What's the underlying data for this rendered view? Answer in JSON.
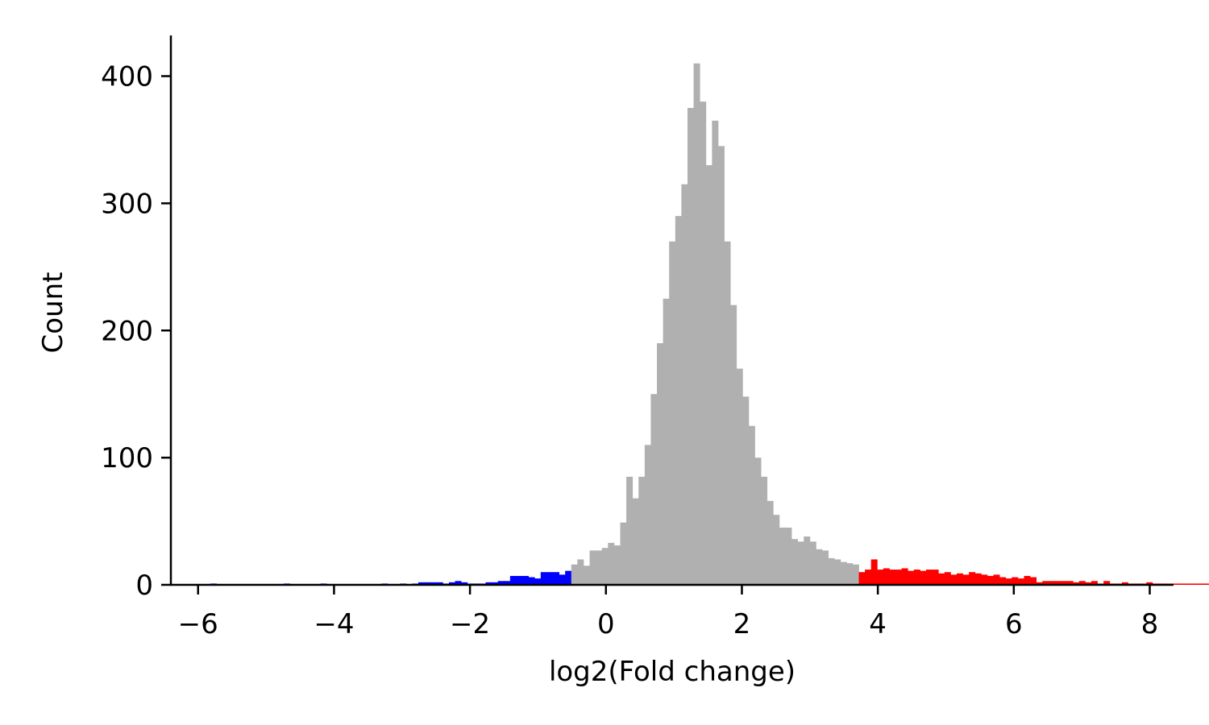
{
  "chart_data": {
    "type": "bar",
    "subtype": "histogram",
    "xlabel": "log2(Fold change)",
    "ylabel": "Count",
    "xlim": [
      -6.4,
      8.35
    ],
    "ylim": [
      0,
      432
    ],
    "xticks": [
      -6,
      -4,
      -2,
      0,
      2,
      4,
      6,
      8
    ],
    "xtick_labels": [
      "−6",
      "−4",
      "−2",
      "0",
      "2",
      "4",
      "6",
      "8"
    ],
    "yticks": [
      0,
      100,
      200,
      300,
      400
    ],
    "ytick_labels": [
      "0",
      "100",
      "200",
      "300",
      "400"
    ],
    "grid": false,
    "bin_start": -6.0,
    "bin_width": 0.09,
    "colors": {
      "down": "#0000ff",
      "neutral": "#b0b0b0",
      "up": "#ff0000",
      "axis": "#000000"
    },
    "series": [
      {
        "color_key": "down",
        "values": [
          0,
          0,
          1,
          0,
          0,
          0,
          0,
          0,
          0,
          0,
          0,
          0,
          0,
          0,
          1,
          0,
          0,
          0,
          0,
          0,
          1,
          0,
          0,
          0,
          0,
          0,
          0,
          0,
          0,
          0,
          1,
          0,
          0,
          1,
          0,
          1,
          2,
          2,
          2,
          2,
          1,
          2,
          3,
          2,
          1,
          1,
          1,
          2,
          2,
          3,
          3,
          7,
          7,
          7,
          6,
          5,
          10,
          10,
          10,
          8,
          11
        ]
      },
      {
        "color_key": "neutral",
        "values": [
          16,
          20,
          15,
          27,
          27,
          29,
          33,
          31,
          49,
          85,
          68,
          85,
          110,
          150,
          190,
          225,
          270,
          290,
          315,
          375,
          410,
          380,
          330,
          365,
          345,
          270,
          220,
          170,
          148,
          125,
          100,
          85,
          66,
          55,
          45,
          45,
          36,
          34,
          38,
          34,
          28,
          27,
          21,
          20,
          18,
          17,
          16
        ]
      },
      {
        "color_key": "up",
        "values": [
          10,
          12,
          20,
          12,
          13,
          12,
          12,
          13,
          11,
          12,
          11,
          12,
          12,
          9,
          10,
          8,
          9,
          8,
          10,
          9,
          8,
          7,
          8,
          6,
          5,
          6,
          5,
          7,
          6,
          2,
          3,
          3,
          3,
          3,
          3,
          2,
          3,
          2,
          3,
          1,
          3,
          1,
          1,
          2,
          1,
          1,
          1,
          2,
          1,
          1,
          1,
          1,
          1,
          1,
          1,
          1,
          1,
          1,
          1,
          1,
          1,
          1,
          0,
          1,
          0,
          0,
          1,
          0,
          0,
          0,
          0,
          0,
          1,
          0,
          0,
          0,
          0,
          0,
          1,
          0,
          0,
          0,
          0,
          0,
          0,
          0,
          0,
          0,
          0,
          1,
          0
        ]
      }
    ]
  }
}
